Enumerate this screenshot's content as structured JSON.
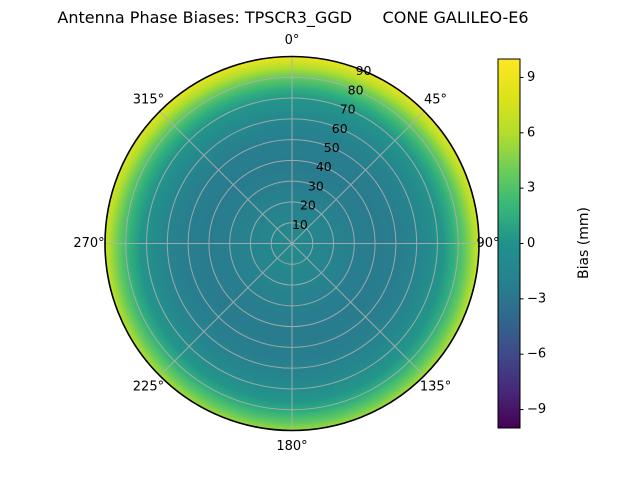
{
  "title": "Antenna Phase Biases: TPSCR3_GGD      CONE GALILEO-E6",
  "chart_data": {
    "type": "heatmap",
    "projection": "polar",
    "description": "Polar map of antenna phase bias versus azimuth (0-360 deg) and zenith angle (0-90 deg); pattern is nearly azimuthally symmetric, teal (slightly negative) interior with bright green-yellow (positive) ring at the outer edge, brightest toward the top",
    "theta_tick_labels": [
      "0°",
      "45°",
      "90°",
      "135°",
      "180°",
      "225°",
      "270°",
      "315°"
    ],
    "r_ticks": [
      10,
      20,
      30,
      40,
      50,
      60,
      70,
      80,
      90
    ],
    "r_max": 90,
    "r_label_angle_deg": 22.5,
    "radial_profile": {
      "zenith_deg": [
        0,
        10,
        20,
        30,
        40,
        50,
        60,
        70,
        75,
        80,
        85,
        90
      ],
      "bias_mm": [
        -1.0,
        -1.4,
        -1.9,
        -2.3,
        -2.5,
        -2.3,
        -1.5,
        0.2,
        1.5,
        3.5,
        6.0,
        9.0
      ]
    },
    "colorbar": {
      "label": "Bias (mm)",
      "ticks": [
        9,
        6,
        3,
        0,
        -3,
        -6,
        -9
      ],
      "vmin": -10,
      "vmax": 10,
      "colormap": "viridis"
    },
    "grid": true
  },
  "colors": {
    "background": "#ffffff",
    "grid": "#b0b0b0",
    "spine": "#000000",
    "text": "#000000",
    "viridis": [
      {
        "t": 0.0,
        "rgb": [
          68,
          1,
          84
        ]
      },
      {
        "t": 0.1,
        "rgb": [
          72,
          40,
          120
        ]
      },
      {
        "t": 0.2,
        "rgb": [
          62,
          74,
          137
        ]
      },
      {
        "t": 0.3,
        "rgb": [
          49,
          104,
          142
        ]
      },
      {
        "t": 0.4,
        "rgb": [
          38,
          130,
          142
        ]
      },
      {
        "t": 0.5,
        "rgb": [
          33,
          145,
          140
        ]
      },
      {
        "t": 0.6,
        "rgb": [
          53,
          183,
          121
        ]
      },
      {
        "t": 0.7,
        "rgb": [
          109,
          205,
          89
        ]
      },
      {
        "t": 0.8,
        "rgb": [
          180,
          222,
          44
        ]
      },
      {
        "t": 0.9,
        "rgb": [
          221,
          227,
          24
        ]
      },
      {
        "t": 1.0,
        "rgb": [
          253,
          231,
          37
        ]
      }
    ]
  }
}
